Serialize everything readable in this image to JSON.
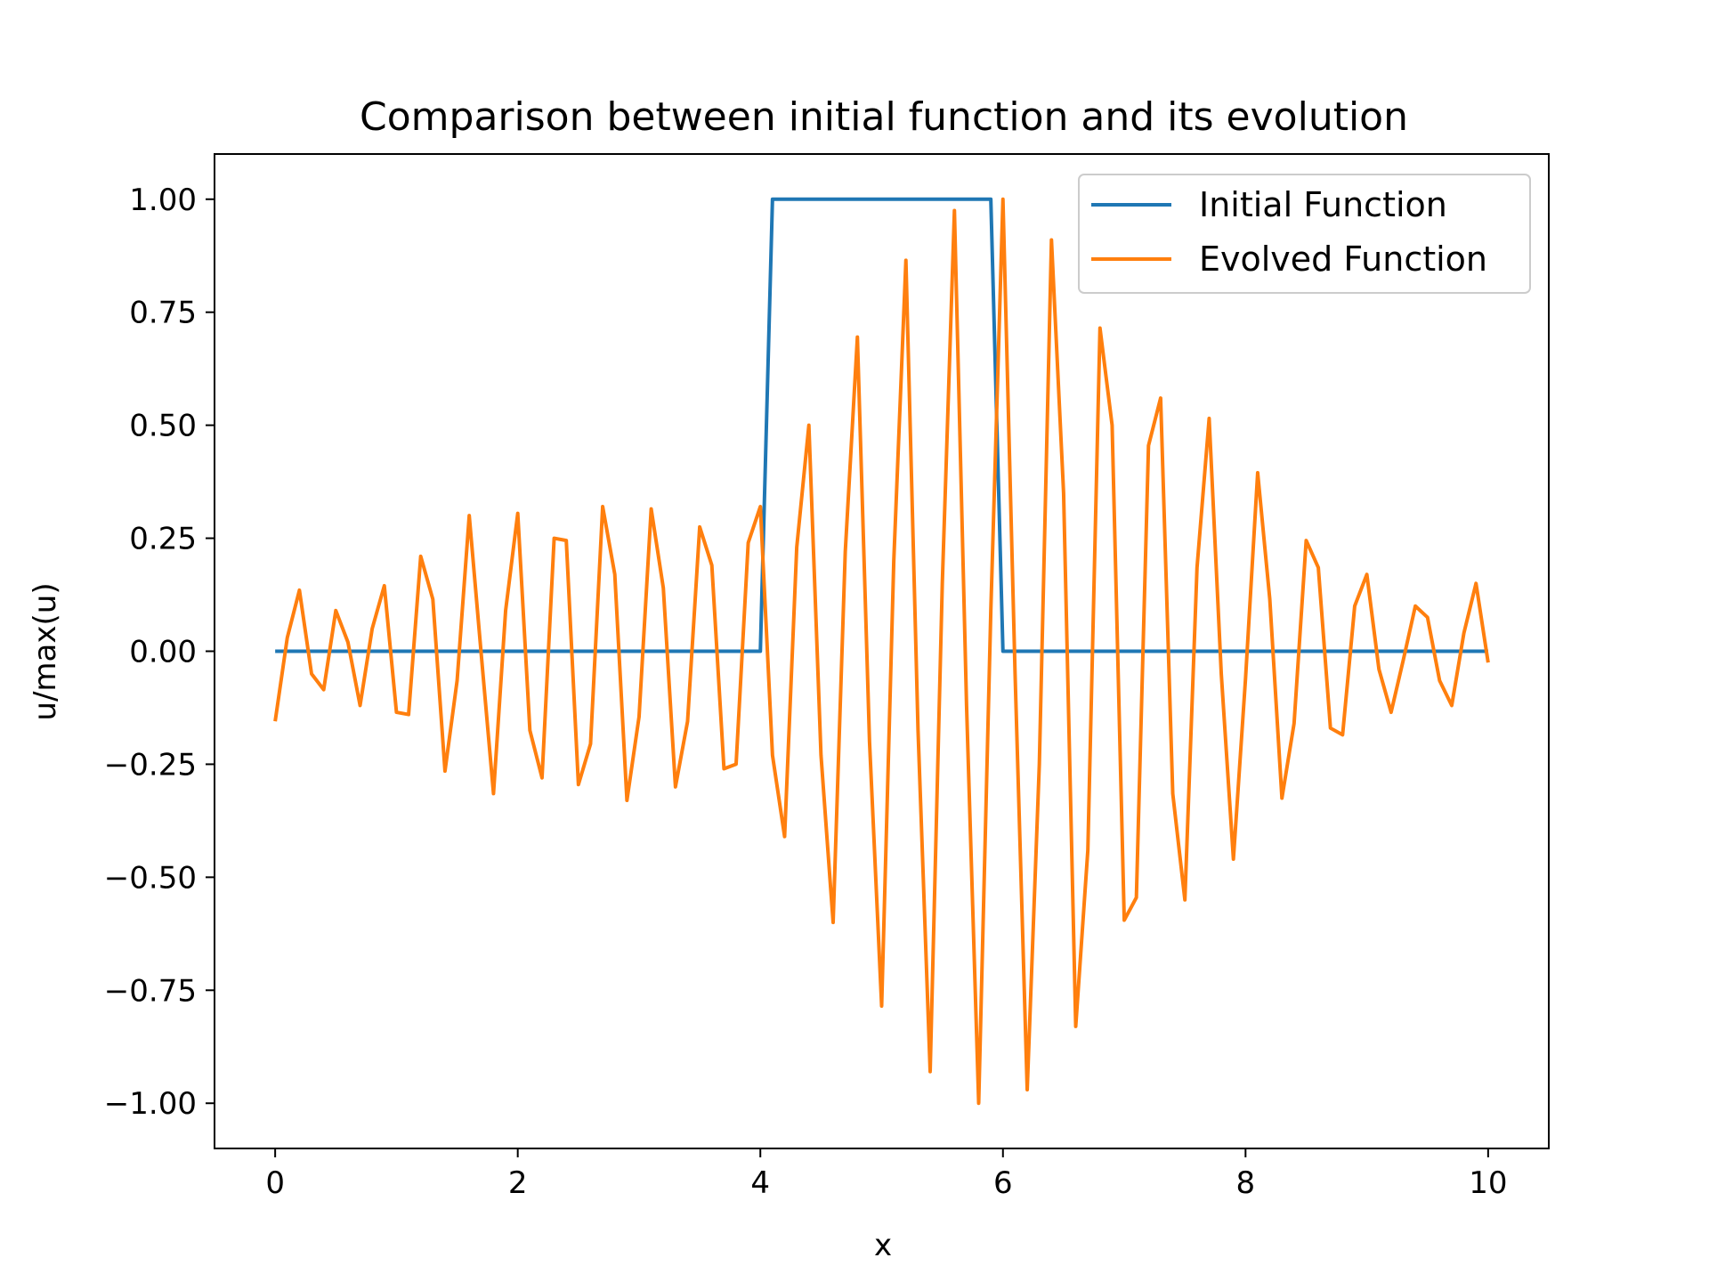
{
  "chart_data": {
    "type": "line",
    "title": "Comparison between initial function and its evolution",
    "xlabel": "x",
    "ylabel": "u/max(u)",
    "xlim": [
      -0.5,
      10.5
    ],
    "ylim": [
      -1.1,
      1.1
    ],
    "xticks": [
      0,
      2,
      4,
      6,
      8,
      10
    ],
    "xtick_labels": [
      "0",
      "2",
      "4",
      "6",
      "8",
      "10"
    ],
    "yticks": [
      1.0,
      0.75,
      0.5,
      0.25,
      0.0,
      -0.25,
      -0.5,
      -0.75,
      -1.0
    ],
    "ytick_labels": [
      "1.00",
      "0.75",
      "0.50",
      "0.25",
      "0.00",
      "−0.25",
      "−0.50",
      "−0.75",
      "−1.00"
    ],
    "grid": false,
    "legend_position": "top-right",
    "series": [
      {
        "name": "Initial Function",
        "color": "#1f77b4",
        "x": [
          0,
          0.1,
          0.2,
          0.3,
          0.4,
          0.5,
          0.6,
          0.7,
          0.8,
          0.9,
          1.0,
          1.1,
          1.2,
          1.3,
          1.4,
          1.5,
          1.6,
          1.7,
          1.8,
          1.9,
          2.0,
          2.1,
          2.2,
          2.3,
          2.4,
          2.5,
          2.6,
          2.7,
          2.8,
          2.9,
          3.0,
          3.1,
          3.2,
          3.3,
          3.4,
          3.5,
          3.6,
          3.7,
          3.8,
          3.9,
          4.0,
          4.1,
          4.2,
          4.3,
          4.4,
          4.5,
          4.6,
          4.7,
          4.8,
          4.9,
          5.0,
          5.1,
          5.2,
          5.3,
          5.4,
          5.5,
          5.6,
          5.7,
          5.8,
          5.9,
          6.0,
          6.1,
          6.2,
          6.3,
          6.4,
          6.5,
          6.6,
          6.7,
          6.8,
          6.9,
          7.0,
          7.1,
          7.2,
          7.3,
          7.4,
          7.5,
          7.6,
          7.7,
          7.8,
          7.9,
          8.0,
          8.1,
          8.2,
          8.3,
          8.4,
          8.5,
          8.6,
          8.7,
          8.8,
          8.9,
          9.0,
          9.1,
          9.2,
          9.3,
          9.4,
          9.5,
          9.6,
          9.7,
          9.8,
          9.9,
          10.0
        ],
        "y": [
          0,
          0,
          0,
          0,
          0,
          0,
          0,
          0,
          0,
          0,
          0,
          0,
          0,
          0,
          0,
          0,
          0,
          0,
          0,
          0,
          0,
          0,
          0,
          0,
          0,
          0,
          0,
          0,
          0,
          0,
          0,
          0,
          0,
          0,
          0,
          0,
          0,
          0,
          0,
          0,
          0,
          1,
          1,
          1,
          1,
          1,
          1,
          1,
          1,
          1,
          1,
          1,
          1,
          1,
          1,
          1,
          1,
          1,
          1,
          1,
          0,
          0,
          0,
          0,
          0,
          0,
          0,
          0,
          0,
          0,
          0,
          0,
          0,
          0,
          0,
          0,
          0,
          0,
          0,
          0,
          0,
          0,
          0,
          0,
          0,
          0,
          0,
          0,
          0,
          0,
          0,
          0,
          0,
          0,
          0,
          0,
          0,
          0,
          0,
          0,
          0
        ]
      },
      {
        "name": "Evolved Function",
        "color": "#ff7f0e",
        "x": [
          0,
          0.1,
          0.2,
          0.3,
          0.4,
          0.5,
          0.6,
          0.7,
          0.8,
          0.9,
          1.0,
          1.1,
          1.2,
          1.3,
          1.4,
          1.5,
          1.6,
          1.7,
          1.8,
          1.9,
          2.0,
          2.1,
          2.2,
          2.3,
          2.4,
          2.5,
          2.6,
          2.7,
          2.8,
          2.9,
          3.0,
          3.1,
          3.2,
          3.3,
          3.4,
          3.5,
          3.6,
          3.7,
          3.8,
          3.9,
          4.0,
          4.1,
          4.2,
          4.3,
          4.4,
          4.5,
          4.6,
          4.7,
          4.8,
          4.9,
          5.0,
          5.1,
          5.2,
          5.3,
          5.4,
          5.5,
          5.6,
          5.7,
          5.8,
          5.9,
          6.0,
          6.1,
          6.2,
          6.3,
          6.4,
          6.5,
          6.6,
          6.7,
          6.8,
          6.9,
          7.0,
          7.1,
          7.2,
          7.3,
          7.4,
          7.5,
          7.6,
          7.7,
          7.8,
          7.9,
          8.0,
          8.1,
          8.2,
          8.3,
          8.4,
          8.5,
          8.6,
          8.7,
          8.8,
          8.9,
          9.0,
          9.1,
          9.2,
          9.3,
          9.4,
          9.5,
          9.6,
          9.7,
          9.8,
          9.9,
          10.0
        ],
        "y": [
          -0.155,
          0.03,
          0.135,
          -0.05,
          -0.085,
          0.09,
          0.02,
          -0.12,
          0.05,
          0.145,
          -0.135,
          -0.14,
          0.21,
          0.115,
          -0.265,
          -0.065,
          0.3,
          -0.01,
          -0.315,
          0.09,
          0.305,
          -0.175,
          -0.28,
          0.25,
          0.245,
          -0.295,
          -0.205,
          0.32,
          0.17,
          -0.33,
          -0.145,
          0.315,
          0.14,
          -0.3,
          -0.155,
          0.275,
          0.19,
          -0.26,
          -0.25,
          0.24,
          0.32,
          -0.23,
          -0.41,
          0.23,
          0.5,
          -0.23,
          -0.6,
          0.22,
          0.695,
          -0.2,
          -0.785,
          0.2,
          0.865,
          -0.175,
          -0.93,
          0.15,
          0.975,
          -0.12,
          -1.0,
          0.09,
          1.0,
          -0.05,
          -0.97,
          -0.25,
          0.91,
          0.35,
          -0.83,
          -0.44,
          0.715,
          0.5,
          -0.595,
          -0.545,
          0.455,
          0.56,
          -0.315,
          -0.55,
          0.185,
          0.515,
          -0.05,
          -0.46,
          -0.06,
          0.395,
          0.115,
          -0.325,
          -0.16,
          0.245,
          0.185,
          -0.17,
          -0.185,
          0.1,
          0.17,
          -0.04,
          -0.135,
          -0.02,
          0.1,
          0.075,
          -0.065,
          -0.12,
          0.04,
          0.15,
          -0.025
        ]
      }
    ]
  }
}
